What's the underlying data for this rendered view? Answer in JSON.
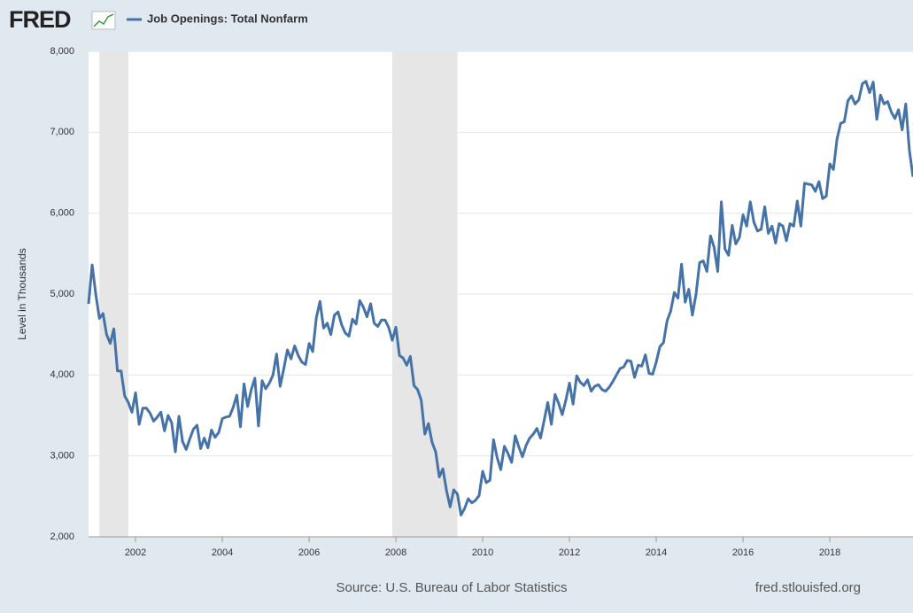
{
  "chart_data": {
    "type": "line",
    "logo": "FRED",
    "ylabel": "Level in Thousands",
    "source": "Source: U.S. Bureau of Labor Statistics",
    "site": "fred.stlouisfed.org",
    "xlim": [
      2000.917,
      2019.917
    ],
    "xticks": [
      2002,
      2004,
      2006,
      2008,
      2010,
      2012,
      2014,
      2016,
      2018
    ],
    "ylim": [
      2000,
      8000
    ],
    "yticks": [
      {
        "value": 2000,
        "label": "2,000"
      },
      {
        "value": 3000,
        "label": "3,000"
      },
      {
        "value": 4000,
        "label": "4,000"
      },
      {
        "value": 5000,
        "label": "5,000"
      },
      {
        "value": 6000,
        "label": "6,000"
      },
      {
        "value": 7000,
        "label": "7,000"
      },
      {
        "value": 8000,
        "label": "8,000"
      }
    ],
    "grid": true,
    "recessions": [
      [
        2001.167,
        2001.833
      ],
      [
        2007.917,
        2009.417
      ]
    ],
    "x": [
      2000.917,
      2001,
      2001.083,
      2001.167,
      2001.25,
      2001.333,
      2001.417,
      2001.5,
      2001.583,
      2001.667,
      2001.75,
      2001.833,
      2001.917,
      2002,
      2002.083,
      2002.167,
      2002.25,
      2002.333,
      2002.417,
      2002.5,
      2002.583,
      2002.667,
      2002.75,
      2002.833,
      2002.917,
      2003,
      2003.083,
      2003.167,
      2003.25,
      2003.333,
      2003.417,
      2003.5,
      2003.583,
      2003.667,
      2003.75,
      2003.833,
      2003.917,
      2004,
      2004.083,
      2004.167,
      2004.25,
      2004.333,
      2004.417,
      2004.5,
      2004.583,
      2004.667,
      2004.75,
      2004.833,
      2004.917,
      2005,
      2005.083,
      2005.167,
      2005.25,
      2005.333,
      2005.417,
      2005.5,
      2005.583,
      2005.667,
      2005.75,
      2005.833,
      2005.917,
      2006,
      2006.083,
      2006.167,
      2006.25,
      2006.333,
      2006.417,
      2006.5,
      2006.583,
      2006.667,
      2006.75,
      2006.833,
      2006.917,
      2007,
      2007.083,
      2007.167,
      2007.25,
      2007.333,
      2007.417,
      2007.5,
      2007.583,
      2007.667,
      2007.75,
      2007.833,
      2007.917,
      2008,
      2008.083,
      2008.167,
      2008.25,
      2008.333,
      2008.417,
      2008.5,
      2008.583,
      2008.667,
      2008.75,
      2008.833,
      2008.917,
      2009,
      2009.083,
      2009.167,
      2009.25,
      2009.333,
      2009.417,
      2009.5,
      2009.583,
      2009.667,
      2009.75,
      2009.833,
      2009.917,
      2010,
      2010.083,
      2010.167,
      2010.25,
      2010.333,
      2010.417,
      2010.5,
      2010.583,
      2010.667,
      2010.75,
      2010.833,
      2010.917,
      2011,
      2011.083,
      2011.167,
      2011.25,
      2011.333,
      2011.417,
      2011.5,
      2011.583,
      2011.667,
      2011.75,
      2011.833,
      2011.917,
      2012,
      2012.083,
      2012.167,
      2012.25,
      2012.333,
      2012.417,
      2012.5,
      2012.583,
      2012.667,
      2012.75,
      2012.833,
      2012.917,
      2013,
      2013.083,
      2013.167,
      2013.25,
      2013.333,
      2013.417,
      2013.5,
      2013.583,
      2013.667,
      2013.75,
      2013.833,
      2013.917,
      2014,
      2014.083,
      2014.167,
      2014.25,
      2014.333,
      2014.417,
      2014.5,
      2014.583,
      2014.667,
      2014.75,
      2014.833,
      2014.917,
      2015,
      2015.083,
      2015.167,
      2015.25,
      2015.333,
      2015.417,
      2015.5,
      2015.583,
      2015.667,
      2015.75,
      2015.833,
      2015.917,
      2016,
      2016.083,
      2016.167,
      2016.25,
      2016.333,
      2016.417,
      2016.5,
      2016.583,
      2016.667,
      2016.75,
      2016.833,
      2016.917,
      2017,
      2017.083,
      2017.167,
      2017.25,
      2017.333,
      2017.417,
      2017.5,
      2017.583,
      2017.667,
      2017.75,
      2017.833,
      2017.917,
      2018,
      2018.083,
      2018.167,
      2018.25,
      2018.333,
      2018.417,
      2018.5,
      2018.583,
      2018.667,
      2018.75,
      2018.833,
      2018.917,
      2019,
      2019.083,
      2019.167,
      2019.25,
      2019.333,
      2019.417,
      2019.5,
      2019.583,
      2019.667,
      2019.75,
      2019.833,
      2019.917
    ],
    "series": [
      {
        "name": "Job Openings: Total Nonfarm",
        "color": "#4572a7",
        "values": [
          4880,
          5360,
          5000,
          4700,
          4760,
          4500,
          4390,
          4570,
          4050,
          4050,
          3740,
          3660,
          3540,
          3780,
          3390,
          3590,
          3590,
          3530,
          3430,
          3480,
          3540,
          3310,
          3500,
          3410,
          3050,
          3490,
          3180,
          3080,
          3210,
          3330,
          3380,
          3090,
          3220,
          3100,
          3320,
          3230,
          3290,
          3460,
          3480,
          3490,
          3600,
          3750,
          3360,
          3890,
          3610,
          3820,
          3960,
          3370,
          3930,
          3830,
          3900,
          4000,
          4260,
          3860,
          4080,
          4310,
          4200,
          4360,
          4240,
          4160,
          4130,
          4390,
          4290,
          4710,
          4910,
          4580,
          4640,
          4500,
          4740,
          4780,
          4620,
          4520,
          4480,
          4690,
          4630,
          4920,
          4840,
          4720,
          4880,
          4640,
          4600,
          4680,
          4680,
          4590,
          4430,
          4590,
          4240,
          4210,
          4120,
          4230,
          3870,
          3820,
          3690,
          3270,
          3400,
          3170,
          3050,
          2740,
          2840,
          2570,
          2370,
          2580,
          2530,
          2270,
          2350,
          2470,
          2420,
          2450,
          2510,
          2810,
          2670,
          2700,
          3200,
          2980,
          2830,
          3120,
          3030,
          2920,
          3250,
          3110,
          2990,
          3130,
          3220,
          3270,
          3340,
          3220,
          3440,
          3660,
          3390,
          3760,
          3650,
          3510,
          3690,
          3900,
          3640,
          3990,
          3910,
          3870,
          3940,
          3800,
          3860,
          3880,
          3820,
          3800,
          3850,
          3920,
          4000,
          4080,
          4100,
          4180,
          4170,
          3970,
          4120,
          4110,
          4250,
          4020,
          4010,
          4160,
          4350,
          4400,
          4670,
          4790,
          5020,
          4950,
          5370,
          4900,
          5060,
          4740,
          5000,
          5390,
          5410,
          5280,
          5720,
          5580,
          5280,
          6140,
          5560,
          5480,
          5850,
          5620,
          5700,
          5980,
          5840,
          6140,
          5890,
          5780,
          5800,
          6080,
          5750,
          5840,
          5630,
          5870,
          5840,
          5660,
          5870,
          5840,
          6150,
          5840,
          6370,
          6360,
          6350,
          6270,
          6390,
          6180,
          6210,
          6610,
          6540,
          6920,
          7110,
          7130,
          7390,
          7450,
          7350,
          7400,
          7600,
          7630,
          7490,
          7620,
          7160,
          7460,
          7350,
          7380,
          7250,
          7170,
          7280,
          7030,
          7350,
          6780,
          6450
        ]
      }
    ]
  }
}
